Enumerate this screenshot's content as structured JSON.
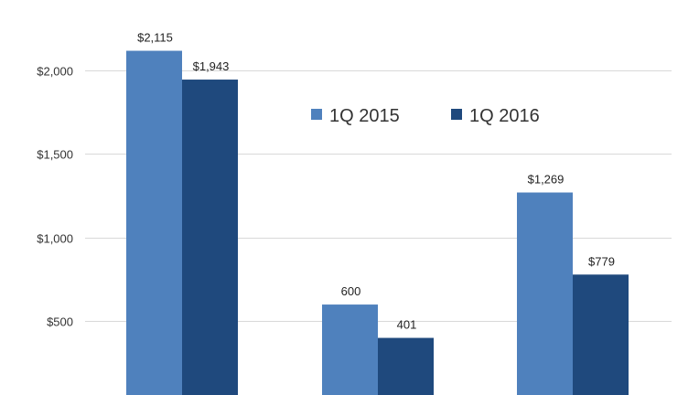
{
  "chart_data": {
    "type": "bar",
    "categories": [
      "",
      "",
      ""
    ],
    "series": [
      {
        "name": "1Q 2015",
        "values": [
          2115,
          600,
          1269
        ],
        "labels": [
          "$2,115",
          "600",
          "$1,269"
        ],
        "color": "#4f81bd"
      },
      {
        "name": "1Q 2016",
        "values": [
          1943,
          401,
          779
        ],
        "labels": [
          "$1,943",
          "401",
          "$779"
        ],
        "color": "#1f497d"
      }
    ],
    "yticks": [
      {
        "value": 500,
        "label": "$500"
      },
      {
        "value": 1000,
        "label": "$1,000"
      },
      {
        "value": 1500,
        "label": "$1,500"
      },
      {
        "value": 2000,
        "label": "$2,000"
      }
    ],
    "ylim": [
      0,
      2300
    ],
    "grid": true,
    "gridline_color": "#d9d9d9",
    "legend_position": "top-right"
  }
}
